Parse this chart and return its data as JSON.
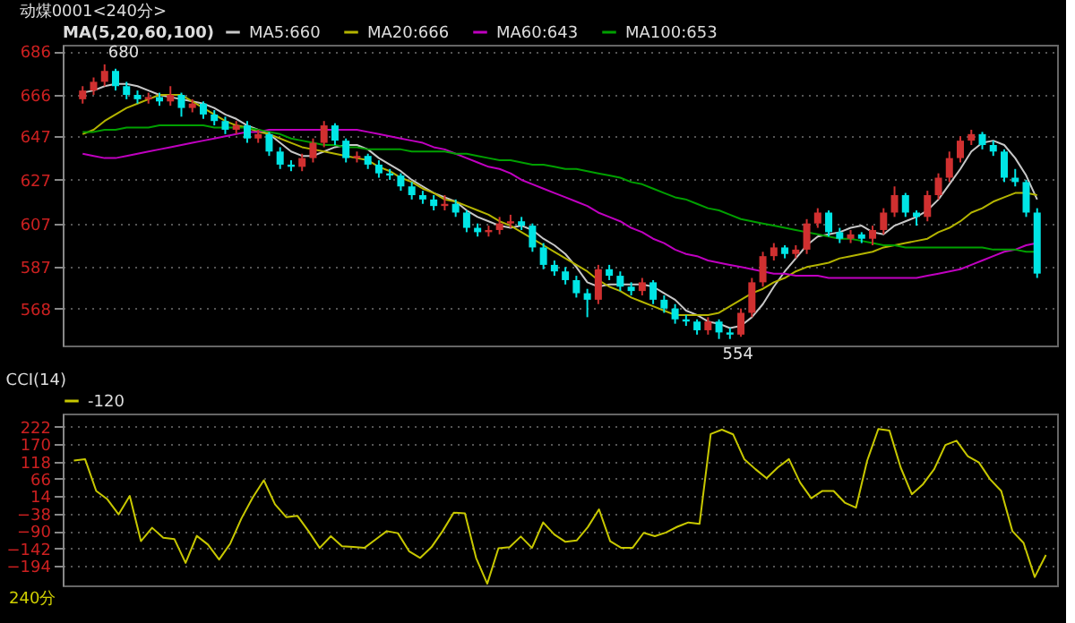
{
  "chart_data": [
    {
      "type": "candlestick",
      "title": "动煤0001<240分>",
      "legend_title": "MA(5,20,60,100)",
      "categories": [
        null,
        null,
        null,
        null,
        null,
        null,
        null,
        null,
        null,
        null,
        null,
        null,
        null,
        null,
        null,
        null,
        null,
        null,
        null,
        null,
        null,
        null,
        null,
        null,
        null,
        null,
        null,
        null,
        null,
        null,
        null,
        null,
        null,
        null,
        null,
        null,
        null,
        null,
        null,
        null,
        null,
        null,
        null,
        null,
        null,
        null,
        null,
        null,
        null,
        null,
        null,
        null,
        null,
        null,
        null,
        null,
        null,
        null,
        null,
        null,
        null,
        null,
        null,
        null,
        null,
        null,
        null,
        null,
        null,
        null,
        null,
        null,
        null,
        null,
        null,
        null,
        null,
        null,
        null,
        null,
        null,
        null,
        null,
        null,
        null,
        null,
        null,
        null
      ],
      "ohlc": [
        [
          664,
          670,
          662,
          668
        ],
        [
          668,
          674,
          666,
          672
        ],
        [
          672,
          680,
          670,
          677
        ],
        [
          677,
          678,
          668,
          670
        ],
        [
          670,
          672,
          664,
          666
        ],
        [
          666,
          668,
          662,
          664
        ],
        [
          664,
          667,
          662,
          665
        ],
        [
          665,
          667,
          661,
          663
        ],
        [
          663,
          670,
          661,
          666
        ],
        [
          666,
          667,
          656,
          660
        ],
        [
          660,
          664,
          658,
          662
        ],
        [
          662,
          663,
          655,
          657
        ],
        [
          657,
          659,
          652,
          654
        ],
        [
          654,
          656,
          648,
          650
        ],
        [
          650,
          654,
          648,
          652
        ],
        [
          652,
          654,
          644,
          646
        ],
        [
          646,
          650,
          644,
          648
        ],
        [
          648,
          649,
          638,
          640
        ],
        [
          640,
          642,
          632,
          634
        ],
        [
          634,
          636,
          631,
          633
        ],
        [
          633,
          639,
          631,
          637
        ],
        [
          637,
          646,
          635,
          644
        ],
        [
          644,
          654,
          642,
          652
        ],
        [
          652,
          653,
          643,
          645
        ],
        [
          645,
          646,
          635,
          637
        ],
        [
          637,
          640,
          635,
          638
        ],
        [
          638,
          639,
          632,
          634
        ],
        [
          634,
          636,
          628,
          630
        ],
        [
          630,
          632,
          627,
          629
        ],
        [
          629,
          630,
          622,
          624
        ],
        [
          624,
          626,
          618,
          620
        ],
        [
          620,
          622,
          616,
          618
        ],
        [
          618,
          620,
          613,
          615
        ],
        [
          615,
          620,
          613,
          616
        ],
        [
          616,
          618,
          610,
          612
        ],
        [
          612,
          613,
          603,
          605
        ],
        [
          605,
          607,
          601,
          603
        ],
        [
          603,
          606,
          601,
          604
        ],
        [
          604,
          610,
          602,
          607
        ],
        [
          607,
          611,
          605,
          608
        ],
        [
          608,
          610,
          604,
          606
        ],
        [
          606,
          607,
          594,
          596
        ],
        [
          596,
          598,
          586,
          588
        ],
        [
          588,
          590,
          583,
          585
        ],
        [
          585,
          587,
          579,
          581
        ],
        [
          581,
          583,
          573,
          575
        ],
        [
          575,
          577,
          564,
          572
        ],
        [
          572,
          588,
          570,
          586
        ],
        [
          586,
          588,
          581,
          583
        ],
        [
          583,
          585,
          576,
          578
        ],
        [
          578,
          580,
          574,
          576
        ],
        [
          576,
          582,
          574,
          580
        ],
        [
          580,
          581,
          570,
          572
        ],
        [
          572,
          574,
          566,
          568
        ],
        [
          568,
          570,
          561,
          563
        ],
        [
          563,
          565,
          560,
          562
        ],
        [
          562,
          563,
          556,
          558
        ],
        [
          558,
          564,
          556,
          562
        ],
        [
          562,
          563,
          554,
          557
        ],
        [
          557,
          559,
          554,
          556
        ],
        [
          556,
          568,
          555,
          566
        ],
        [
          566,
          582,
          564,
          580
        ],
        [
          580,
          594,
          578,
          592
        ],
        [
          592,
          598,
          590,
          596
        ],
        [
          596,
          597,
          591,
          593
        ],
        [
          593,
          597,
          591,
          595
        ],
        [
          595,
          609,
          593,
          607
        ],
        [
          607,
          614,
          605,
          612
        ],
        [
          612,
          613,
          601,
          603
        ],
        [
          603,
          605,
          598,
          600
        ],
        [
          600,
          604,
          598,
          602
        ],
        [
          602,
          603,
          598,
          600
        ],
        [
          600,
          606,
          597,
          604
        ],
        [
          604,
          614,
          602,
          612
        ],
        [
          612,
          624,
          610,
          620
        ],
        [
          620,
          621,
          610,
          612
        ],
        [
          612,
          613,
          606,
          610
        ],
        [
          610,
          622,
          608,
          620
        ],
        [
          620,
          630,
          618,
          628
        ],
        [
          628,
          640,
          626,
          637
        ],
        [
          637,
          647,
          635,
          645
        ],
        [
          645,
          650,
          643,
          648
        ],
        [
          648,
          649,
          641,
          643
        ],
        [
          643,
          645,
          638,
          640
        ],
        [
          640,
          641,
          626,
          628
        ],
        [
          628,
          632,
          624,
          626
        ],
        [
          626,
          627,
          610,
          612
        ],
        [
          612,
          614,
          582,
          584
        ]
      ],
      "colors": [
        "#d03030",
        "#d03030",
        "#d03030",
        "#00e5e5",
        "#00e5e5",
        "#00e5e5",
        "#d03030",
        "#00e5e5",
        "#d03030",
        "#00e5e5",
        "#d03030",
        "#00e5e5",
        "#00e5e5",
        "#00e5e5",
        "#d03030",
        "#00e5e5",
        "#d03030",
        "#00e5e5",
        "#00e5e5",
        "#00e5e5",
        "#d03030",
        "#d03030",
        "#d03030",
        "#00e5e5",
        "#00e5e5",
        "#d03030",
        "#00e5e5",
        "#00e5e5",
        "#00e5e5",
        "#00e5e5",
        "#00e5e5",
        "#00e5e5",
        "#00e5e5",
        "#d03030",
        "#00e5e5",
        "#00e5e5",
        "#00e5e5",
        "#d03030",
        "#d03030",
        "#d03030",
        "#00e5e5",
        "#00e5e5",
        "#00e5e5",
        "#00e5e5",
        "#00e5e5",
        "#00e5e5",
        "#00e5e5",
        "#d03030",
        "#00e5e5",
        "#00e5e5",
        "#00e5e5",
        "#d03030",
        "#00e5e5",
        "#00e5e5",
        "#00e5e5",
        "#00e5e5",
        "#00e5e5",
        "#d03030",
        "#00e5e5",
        "#00e5e5",
        "#d03030",
        "#d03030",
        "#d03030",
        "#d03030",
        "#00e5e5",
        "#d03030",
        "#d03030",
        "#d03030",
        "#00e5e5",
        "#00e5e5",
        "#d03030",
        "#00e5e5",
        "#d03030",
        "#d03030",
        "#d03030",
        "#00e5e5",
        "#00e5e5",
        "#d03030",
        "#d03030",
        "#d03030",
        "#d03030",
        "#d03030",
        "#00e5e5",
        "#00e5e5",
        "#00e5e5",
        "#00e5e5",
        "#00e5e5",
        "#00e5e5"
      ],
      "series": [
        {
          "name": "MA5:660",
          "type": "line",
          "color": "#c8c8c8",
          "values": [
            667,
            668,
            670,
            671,
            671,
            670,
            668,
            666,
            665,
            664,
            663,
            662,
            660,
            657,
            655,
            652,
            650,
            648,
            644,
            640,
            638,
            638,
            640,
            642,
            643,
            643,
            641,
            637,
            634,
            631,
            627,
            624,
            621,
            619,
            617,
            613,
            610,
            608,
            606,
            605,
            606,
            604,
            600,
            597,
            593,
            587,
            580,
            578,
            579,
            579,
            579,
            579,
            578,
            575,
            572,
            567,
            565,
            562,
            561,
            559,
            560,
            564,
            570,
            578,
            585,
            591,
            597,
            601,
            602,
            603,
            605,
            606,
            603,
            602,
            606,
            608,
            610,
            613,
            618,
            625,
            632,
            640,
            644,
            645,
            643,
            637,
            629,
            618
          ]
        },
        {
          "name": "MA20:666",
          "type": "line",
          "color": "#b4b400",
          "values": [
            648,
            650,
            654,
            657,
            660,
            662,
            664,
            666,
            666,
            666,
            663,
            660,
            657,
            654,
            652,
            651,
            649,
            648,
            646,
            644,
            642,
            641,
            640,
            639,
            638,
            637,
            636,
            633,
            631,
            628,
            626,
            623,
            621,
            618,
            617,
            615,
            613,
            611,
            608,
            606,
            603,
            600,
            597,
            594,
            591,
            588,
            585,
            581,
            578,
            576,
            573,
            571,
            569,
            567,
            565,
            565,
            565,
            565,
            566,
            569,
            572,
            575,
            577,
            580,
            582,
            585,
            587,
            588,
            589,
            591,
            592,
            593,
            594,
            596,
            597,
            598,
            599,
            600,
            603,
            605,
            608,
            612,
            614,
            617,
            619,
            621,
            621,
            620
          ]
        },
        {
          "name": "MA60:643",
          "type": "line",
          "color": "#c000c0",
          "values": [
            639,
            638,
            637,
            637,
            638,
            639,
            640,
            641,
            642,
            643,
            644,
            645,
            646,
            647,
            648,
            649,
            649,
            650,
            650,
            650,
            650,
            650,
            650,
            650,
            650,
            650,
            649,
            648,
            647,
            646,
            645,
            644,
            642,
            641,
            639,
            637,
            635,
            633,
            632,
            630,
            627,
            625,
            623,
            621,
            619,
            617,
            615,
            612,
            610,
            608,
            605,
            603,
            600,
            598,
            595,
            593,
            592,
            590,
            589,
            588,
            587,
            586,
            585,
            584,
            584,
            583,
            583,
            583,
            582,
            582,
            582,
            582,
            582,
            582,
            582,
            582,
            582,
            583,
            584,
            585,
            586,
            588,
            590,
            592,
            594,
            595,
            597,
            598
          ]
        },
        {
          "name": "MA100:653",
          "type": "line",
          "color": "#00a000",
          "values": [
            649,
            649,
            650,
            650,
            651,
            651,
            651,
            652,
            652,
            652,
            652,
            652,
            651,
            651,
            651,
            651,
            650,
            649,
            648,
            646,
            645,
            644,
            643,
            643,
            642,
            642,
            641,
            641,
            641,
            641,
            640,
            640,
            640,
            640,
            639,
            639,
            638,
            637,
            636,
            636,
            635,
            634,
            634,
            633,
            632,
            632,
            631,
            630,
            629,
            628,
            626,
            625,
            623,
            621,
            619,
            618,
            616,
            614,
            613,
            611,
            609,
            608,
            607,
            606,
            605,
            604,
            603,
            602,
            601,
            600,
            600,
            599,
            598,
            597,
            597,
            596,
            596,
            596,
            596,
            596,
            596,
            596,
            596,
            595,
            595,
            595,
            594,
            594
          ]
        }
      ],
      "ylim": [
        551,
        689
      ],
      "yticks": [
        568,
        587,
        607,
        627,
        647,
        666,
        686
      ],
      "grid": "y",
      "tick_labels": "y",
      "legend": "top",
      "annotations": [
        {
          "text": "680",
          "y": 680
        },
        {
          "text": "554",
          "y": 554
        }
      ]
    },
    {
      "type": "line",
      "title": "CCI(14)",
      "categories": [
        null,
        null,
        null,
        null,
        null,
        null,
        null,
        null,
        null,
        null,
        null,
        null,
        null,
        null,
        null,
        null,
        null,
        null,
        null,
        null,
        null,
        null,
        null,
        null,
        null,
        null,
        null,
        null,
        null,
        null,
        null,
        null,
        null,
        null,
        null,
        null,
        null,
        null,
        null,
        null,
        null,
        null,
        null,
        null,
        null,
        null,
        null,
        null,
        null,
        null,
        null,
        null,
        null,
        null,
        null,
        null,
        null,
        null,
        null,
        null,
        null,
        null,
        null,
        null,
        null,
        null,
        null,
        null,
        null,
        null,
        null,
        null,
        null,
        null,
        null,
        null,
        null,
        null,
        null,
        null,
        null,
        null,
        null,
        null,
        null,
        null,
        null,
        null
      ],
      "series": [
        {
          "name": "-120",
          "color": "#c8c800",
          "values": [
            121,
            125,
            30,
            5,
            -40,
            15,
            -120,
            -80,
            -110,
            -114,
            -185,
            -104,
            -130,
            -175,
            -127,
            -52,
            10,
            62,
            -10,
            -48,
            -44,
            -90,
            -140,
            -105,
            -135,
            -137,
            -140,
            -115,
            -90,
            -96,
            -150,
            -170,
            -138,
            -90,
            -35,
            -37,
            -170,
            -247,
            -141,
            -138,
            -106,
            -140,
            -64,
            -100,
            -122,
            -118,
            -78,
            -25,
            -120,
            -140,
            -140,
            -95,
            -105,
            -94,
            -77,
            -64,
            -68,
            200,
            213,
            199,
            125,
            95,
            68,
            100,
            125,
            55,
            8,
            30,
            30,
            -5,
            -20,
            120,
            215,
            210,
            100,
            20,
            50,
            95,
            167,
            180,
            134,
            115,
            65,
            30,
            -90,
            -125,
            -227,
            -161
          ]
        }
      ],
      "ylim": [
        -252,
        261
      ],
      "yticks": [
        -194,
        -142,
        -90,
        -38,
        14,
        66,
        118,
        170,
        222
      ],
      "grid": "y",
      "tick_labels": "y",
      "legend": "top",
      "annotations": [
        "240分"
      ]
    }
  ]
}
